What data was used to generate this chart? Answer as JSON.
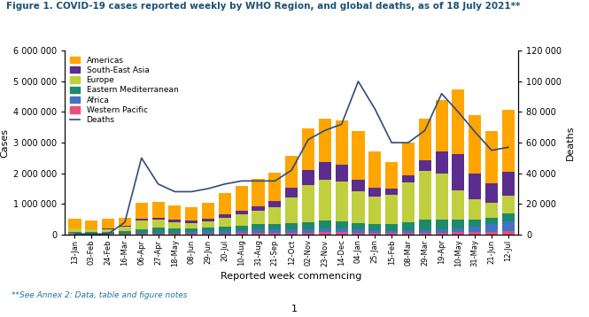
{
  "title": "Figure 1. COVID-19 cases reported weekly by WHO Region, and global deaths, as of 18 July 2021**",
  "xlabel": "Reported week commencing",
  "ylabel_left": "Cases",
  "ylabel_right": "Deaths",
  "footnote": "**See Annex 2: Data, table and figure notes",
  "page_number": "1",
  "colors": {
    "Americas": "#FFA500",
    "South-East Asia": "#5B2D8E",
    "Europe": "#BFCF3E",
    "Eastern Mediterranean": "#1D8A6B",
    "Africa": "#4472C4",
    "Western Pacific": "#E8507A",
    "Deaths": "#2F4B7C"
  },
  "weeks": [
    "13-Jan",
    "03-Feb",
    "24-Feb",
    "16-Mar",
    "06-Apr",
    "27-Apr",
    "18-May",
    "08-Jun",
    "29-Jun",
    "20-Jul",
    "10-Aug",
    "31-Aug",
    "21-Sep",
    "12-Oct",
    "02-Nov",
    "23-Nov",
    "14-Dec",
    "04-Jan",
    "25-Jan",
    "15-Feb",
    "08-Mar",
    "29-Mar",
    "19-Apr",
    "10-May",
    "31-May",
    "21-Jun",
    "12-Jul"
  ],
  "Americas": [
    310000,
    290000,
    310000,
    270000,
    530000,
    530000,
    470000,
    430000,
    530000,
    710000,
    810000,
    880000,
    920000,
    1050000,
    1350000,
    1400000,
    1450000,
    1600000,
    1200000,
    850000,
    1050000,
    1350000,
    1700000,
    2100000,
    1900000,
    1700000,
    2000000
  ],
  "South_East_Asia": [
    8000,
    8000,
    10000,
    15000,
    40000,
    55000,
    65000,
    75000,
    90000,
    110000,
    130000,
    160000,
    200000,
    320000,
    500000,
    580000,
    550000,
    350000,
    280000,
    220000,
    230000,
    330000,
    700000,
    1200000,
    850000,
    650000,
    780000
  ],
  "Europe": [
    100000,
    90000,
    100000,
    150000,
    280000,
    270000,
    220000,
    190000,
    210000,
    290000,
    360000,
    440000,
    560000,
    850000,
    1200000,
    1350000,
    1300000,
    1050000,
    900000,
    950000,
    1300000,
    1600000,
    1500000,
    950000,
    650000,
    480000,
    600000
  ],
  "Eastern_Mediterranean": [
    30000,
    35000,
    45000,
    75000,
    130000,
    160000,
    130000,
    110000,
    110000,
    130000,
    150000,
    165000,
    175000,
    200000,
    240000,
    250000,
    220000,
    190000,
    190000,
    210000,
    280000,
    340000,
    320000,
    270000,
    240000,
    210000,
    260000
  ],
  "Africa": [
    15000,
    15000,
    15000,
    20000,
    30000,
    35000,
    40000,
    55000,
    70000,
    85000,
    100000,
    115000,
    110000,
    100000,
    110000,
    130000,
    130000,
    125000,
    100000,
    75000,
    75000,
    90000,
    115000,
    140000,
    180000,
    250000,
    310000
  ],
  "Western_Pacific": [
    50000,
    35000,
    25000,
    20000,
    25000,
    25000,
    25000,
    30000,
    35000,
    40000,
    45000,
    50000,
    55000,
    60000,
    65000,
    70000,
    70000,
    60000,
    55000,
    50000,
    55000,
    60000,
    65000,
    70000,
    80000,
    90000,
    110000
  ],
  "deaths": [
    500,
    400,
    400,
    8000,
    50000,
    33000,
    28000,
    28000,
    30000,
    33000,
    35000,
    35000,
    35000,
    42000,
    62000,
    68000,
    72000,
    100000,
    82000,
    60000,
    60000,
    68000,
    92000,
    80000,
    67000,
    55000,
    57000
  ],
  "ylim_left": [
    0,
    6000000
  ],
  "ylim_right": [
    0,
    120000
  ],
  "yticks_left": [
    0,
    1000000,
    2000000,
    3000000,
    4000000,
    5000000,
    6000000
  ],
  "yticks_right": [
    0,
    20000,
    40000,
    60000,
    80000,
    100000,
    120000
  ]
}
